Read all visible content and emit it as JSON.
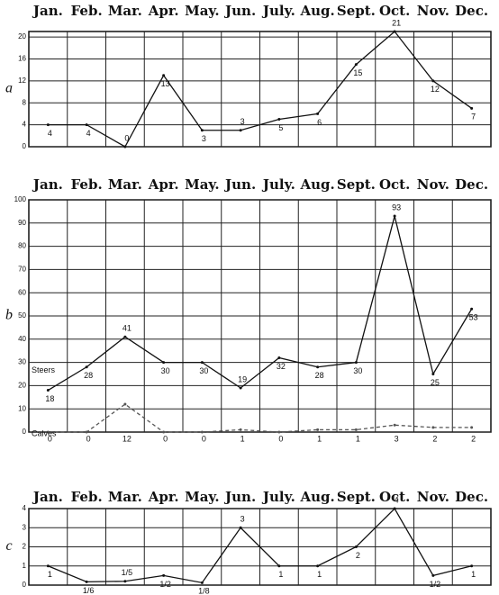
{
  "chart_data": [
    {
      "type": "line",
      "panel_label": "a",
      "categories": [
        "Jan.",
        "Feb.",
        "Mar.",
        "Apr.",
        "May.",
        "Jun.",
        "July.",
        "Aug.",
        "Sept.",
        "Oct.",
        "Nov.",
        "Dec."
      ],
      "series": [
        {
          "color": "#111",
          "values": [
            4,
            4,
            0,
            13,
            3,
            3,
            5,
            6,
            15,
            21,
            12,
            7
          ]
        }
      ],
      "ylim": [
        0,
        21
      ],
      "yticks": [
        0,
        4,
        8,
        12,
        16,
        20
      ]
    },
    {
      "type": "line",
      "panel_label": "b",
      "categories": [
        "Jan.",
        "Feb.",
        "Mar.",
        "Apr.",
        "May.",
        "Jun.",
        "July.",
        "Aug.",
        "Sept.",
        "Oct.",
        "Nov.",
        "Dec."
      ],
      "series": [
        {
          "name": "Steers",
          "color": "#111",
          "values": [
            18,
            28,
            41,
            30,
            30,
            19,
            32,
            28,
            30,
            93,
            25,
            53
          ]
        },
        {
          "name": "Calves",
          "color": "#555",
          "dashed": true,
          "values": [
            0,
            0,
            12,
            0,
            0,
            1,
            0,
            1,
            1,
            3,
            2,
            2
          ]
        }
      ],
      "ylim": [
        0,
        100
      ],
      "yticks": [
        0,
        10,
        20,
        30,
        40,
        50,
        60,
        70,
        80,
        90,
        100
      ]
    },
    {
      "type": "line",
      "panel_label": "c",
      "categories": [
        "Jan.",
        "Feb.",
        "Mar.",
        "Apr.",
        "May.",
        "Jun.",
        "July.",
        "Aug.",
        "Sept.",
        "Oct.",
        "Nov.",
        "Dec."
      ],
      "series": [
        {
          "color": "#111",
          "values": [
            1,
            0.17,
            0.2,
            0.5,
            0.125,
            3,
            1,
            1,
            2,
            4,
            0.5,
            1
          ],
          "value_labels": [
            "1",
            "1/6",
            "1/5",
            "1/2",
            "1/8",
            "3",
            "1",
            "1",
            "2",
            "4",
            "1/2",
            "1"
          ]
        }
      ],
      "ylim": [
        0,
        4
      ],
      "yticks": [
        0,
        1,
        2,
        3,
        4
      ]
    }
  ]
}
